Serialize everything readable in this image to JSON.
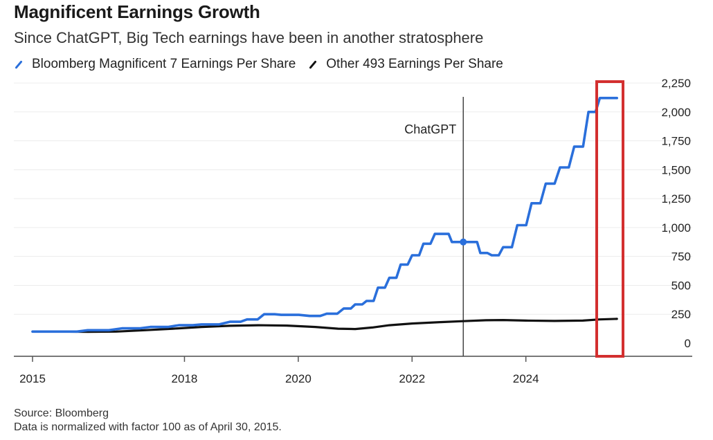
{
  "header": {
    "title": "Magnificent Earnings Growth",
    "subtitle": "Since ChatGPT, Big Tech earnings have been in another stratosphere"
  },
  "legend": [
    {
      "label": "Bloomberg Magnificent 7 Earnings Per Share",
      "color": "#2a6fdb",
      "icon": "diagonal-line-icon"
    },
    {
      "label": "Other 493 Earnings Per Share",
      "color": "#111111",
      "icon": "diagonal-line-icon"
    }
  ],
  "footer": {
    "source": "Source: Bloomberg",
    "note": "Data is normalized with factor 100 as of April 30, 2015."
  },
  "chart_data": {
    "type": "line",
    "title": "Magnificent Earnings Growth",
    "subtitle": "Since ChatGPT, Big Tech earnings have been in another stratosphere",
    "xlabel": "",
    "ylabel": "",
    "x_range": [
      2015.33,
      2026.6
    ],
    "ylim": [
      0,
      2250
    ],
    "y_ticks": [
      0,
      250,
      500,
      750,
      1000,
      1250,
      1500,
      1750,
      2000,
      2250
    ],
    "y_tick_labels": [
      "0",
      "250",
      "500",
      "750",
      "1,000",
      "1,250",
      "1,500",
      "1,750",
      "2,000",
      "2,250"
    ],
    "y_axis_position": "right",
    "x_ticks": [
      2015.33,
      2018,
      2020,
      2022,
      2024
    ],
    "x_tick_labels": [
      "2015",
      "2018",
      "2020",
      "2022",
      "2024"
    ],
    "grid": true,
    "legend_position": "top-left",
    "annotations": [
      {
        "type": "vline",
        "x": 2022.9,
        "label": "ChatGPT",
        "marker_series": "Bloomberg Magnificent 7 Earnings Per Share",
        "marker_value": 875
      },
      {
        "type": "highlight-box",
        "x_range": [
          2025.7,
          2026.2
        ],
        "y_range": [
          0,
          2250
        ],
        "color": "#d32f2f"
      }
    ],
    "series": [
      {
        "name": "Bloomberg Magnificent 7 Earnings Per Share",
        "color": "#2a6fdb",
        "points": [
          [
            2015.33,
            100
          ],
          [
            2015.6,
            100
          ],
          [
            2016.0,
            108
          ],
          [
            2016.5,
            122
          ],
          [
            2017.0,
            132
          ],
          [
            2017.5,
            152
          ],
          [
            2017.7,
            152
          ],
          [
            2017.8,
            165
          ],
          [
            2018.0,
            170
          ],
          [
            2018.3,
            175
          ],
          [
            2018.6,
            200
          ],
          [
            2018.9,
            210
          ],
          [
            2019.0,
            240
          ],
          [
            2019.2,
            250
          ],
          [
            2019.4,
            285
          ],
          [
            2019.55,
            290
          ],
          [
            2019.7,
            260
          ],
          [
            2019.9,
            252
          ],
          [
            2020.2,
            252
          ],
          [
            2020.4,
            245
          ],
          [
            2020.55,
            262
          ],
          [
            2020.8,
            265
          ],
          [
            2020.95,
            300
          ],
          [
            2021.1,
            310
          ],
          [
            2021.25,
            350
          ],
          [
            2021.4,
            355
          ],
          [
            2021.5,
            420
          ],
          [
            2021.65,
            425
          ],
          [
            2021.75,
            510
          ],
          [
            2021.95,
            520
          ],
          [
            2022.05,
            615
          ],
          [
            2022.2,
            625
          ],
          [
            2022.35,
            700
          ],
          [
            2022.5,
            710
          ],
          [
            2022.6,
            770
          ],
          [
            2022.75,
            780
          ],
          [
            2022.9,
            875
          ],
          [
            2023.05,
            890
          ],
          [
            2023.15,
            950
          ],
          [
            2023.3,
            960
          ],
          [
            2023.45,
            875
          ],
          [
            2023.6,
            875
          ],
          [
            2022.9,
            875
          ]
        ],
        "steps": [
          [
            2015.33,
            100
          ],
          [
            2015.8,
            100
          ],
          [
            2016.3,
            112
          ],
          [
            2016.9,
            128
          ],
          [
            2017.4,
            140
          ],
          [
            2017.9,
            155
          ],
          [
            2018.3,
            162
          ],
          [
            2018.8,
            185
          ],
          [
            2019.1,
            205
          ],
          [
            2019.4,
            250
          ],
          [
            2019.7,
            245
          ],
          [
            2020.2,
            235
          ],
          [
            2020.5,
            255
          ],
          [
            2020.8,
            300
          ],
          [
            2021.0,
            335
          ],
          [
            2021.2,
            365
          ],
          [
            2021.4,
            480
          ],
          [
            2021.6,
            565
          ],
          [
            2021.8,
            680
          ],
          [
            2022.0,
            760
          ],
          [
            2022.2,
            860
          ],
          [
            2022.4,
            945
          ],
          [
            2022.55,
            945
          ],
          [
            2022.7,
            875
          ],
          [
            2022.9,
            875
          ],
          [
            2023.05,
            875
          ],
          [
            2023.2,
            780
          ],
          [
            2023.4,
            760
          ],
          [
            2023.6,
            830
          ],
          [
            2023.85,
            1020
          ],
          [
            2024.1,
            1210
          ],
          [
            2024.35,
            1380
          ],
          [
            2024.6,
            1520
          ],
          [
            2024.85,
            1700
          ],
          [
            2025.1,
            2000
          ],
          [
            2025.3,
            2120
          ],
          [
            2025.6,
            2120
          ]
        ]
      },
      {
        "name": "Other 493 Earnings Per Share",
        "color": "#111111",
        "points": [
          [
            2015.33,
            100
          ],
          [
            2015.8,
            100
          ],
          [
            2016.3,
            98
          ],
          [
            2016.8,
            100
          ],
          [
            2017.3,
            112
          ],
          [
            2017.8,
            125
          ],
          [
            2018.3,
            140
          ],
          [
            2018.8,
            150
          ],
          [
            2019.3,
            155
          ],
          [
            2019.8,
            152
          ],
          [
            2020.3,
            140
          ],
          [
            2020.7,
            125
          ],
          [
            2021.0,
            122
          ],
          [
            2021.3,
            135
          ],
          [
            2021.6,
            155
          ],
          [
            2022.0,
            170
          ],
          [
            2022.5,
            182
          ],
          [
            2022.9,
            190
          ],
          [
            2023.3,
            198
          ],
          [
            2023.6,
            200
          ],
          [
            2024.0,
            195
          ],
          [
            2024.5,
            192
          ],
          [
            2025.0,
            195
          ],
          [
            2025.3,
            205
          ],
          [
            2025.6,
            210
          ]
        ]
      }
    ]
  }
}
